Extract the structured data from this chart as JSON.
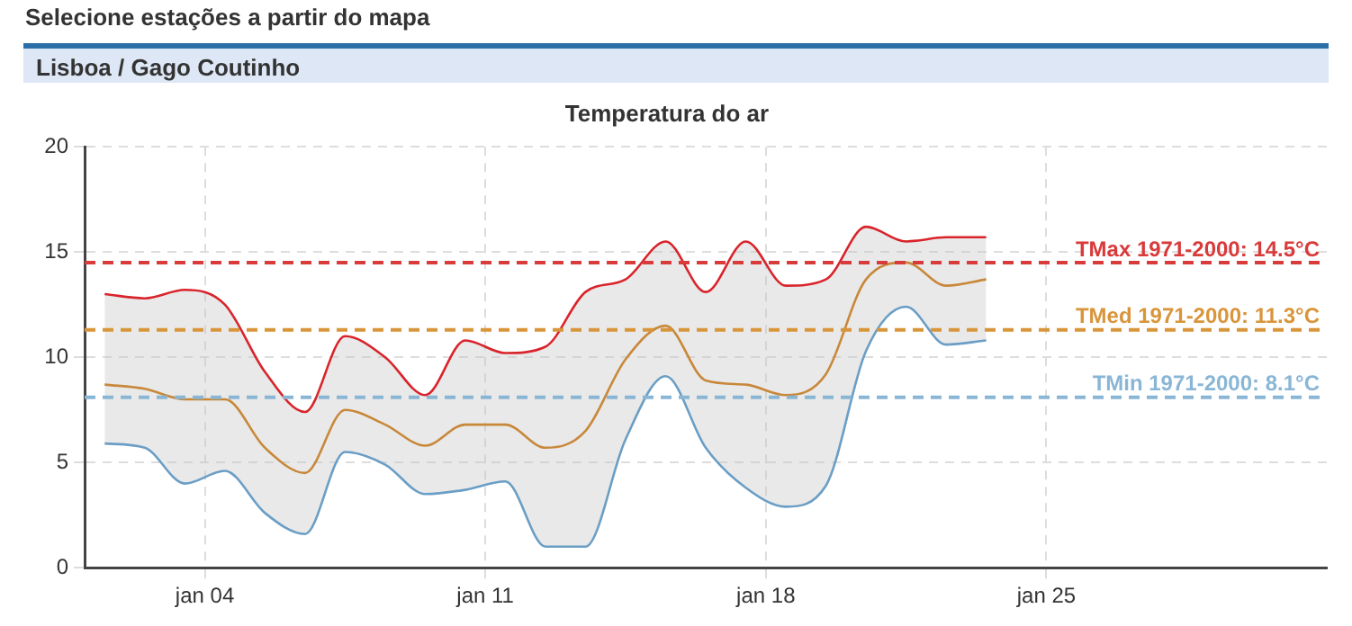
{
  "chart_data": {
    "type": "line",
    "title": "Temperatura do ar",
    "annotations": [
      "Selecione estações a partir do mapa",
      "Lisboa / Gago Coutinho"
    ],
    "x": [
      "--01-01T12:00",
      "--01-02T12:00",
      "--01-03T12:00",
      "--01-04T12:00",
      "--01-05T12:00",
      "--01-06T12:00",
      "--01-07T12:00",
      "--01-08T12:00",
      "--01-09T12:00",
      "--01-10T12:00",
      "--01-11T12:00",
      "--01-12T12:00",
      "--01-13T12:00",
      "--01-14T12:00",
      "--01-15T12:00",
      "--01-16T12:00",
      "--01-17T12:00",
      "--01-18T12:00",
      "--01-19T12:00",
      "--01-20T12:00",
      "--01-21T12:00",
      "--01-22T12:00",
      "--01-23T12:00"
    ],
    "series": [
      {
        "color": "#d9242b",
        "values": [
          13.0,
          12.8,
          13.2,
          12.5,
          9.3,
          7.4,
          11.0,
          10.0,
          8.2,
          10.8,
          10.2,
          10.5,
          13.1,
          13.7,
          15.5,
          13.1,
          15.5,
          13.4,
          13.7,
          16.2,
          15.5,
          15.7,
          15.7
        ]
      },
      {
        "color": "#c8883a",
        "values": [
          8.7,
          8.5,
          8.0,
          8.0,
          5.7,
          4.5,
          7.5,
          6.8,
          5.8,
          6.8,
          6.8,
          5.7,
          6.5,
          9.9,
          11.5,
          8.9,
          8.7,
          8.2,
          9.2,
          13.7,
          14.5,
          13.4,
          13.7
        ],
        "lower": [
          5.9,
          5.7,
          4.0,
          4.6,
          2.6,
          1.6,
          5.5,
          4.9,
          3.5,
          3.7,
          4.1,
          1.0,
          1.0,
          6.1,
          9.1,
          5.7,
          3.8,
          2.9,
          3.9,
          10.3,
          12.4,
          10.6,
          10.8
        ],
        "upper": [
          13.0,
          12.8,
          13.2,
          12.5,
          9.3,
          7.4,
          11.0,
          10.0,
          8.2,
          10.8,
          10.2,
          10.5,
          13.1,
          13.7,
          15.5,
          13.1,
          15.5,
          13.4,
          13.7,
          16.2,
          15.5,
          15.7,
          15.7
        ]
      },
      {
        "color": "#6a9ec5",
        "values": [
          5.9,
          5.7,
          4.0,
          4.6,
          2.6,
          1.6,
          5.5,
          4.9,
          3.5,
          3.7,
          4.1,
          1.0,
          1.0,
          6.1,
          9.1,
          5.7,
          3.8,
          2.9,
          3.9,
          10.3,
          12.4,
          10.6,
          10.8
        ]
      }
    ],
    "xlim": [
      "--01-01",
      "--02-01"
    ],
    "xticks": [
      {
        "value": "--01-04",
        "label": "jan 04"
      },
      {
        "value": "--01-11",
        "label": "jan 11"
      },
      {
        "value": "--01-18",
        "label": "jan 18"
      },
      {
        "value": "--01-25",
        "label": "jan 25"
      }
    ],
    "ylim": [
      0,
      20
    ],
    "yticks": [
      0,
      5,
      10,
      15,
      20
    ],
    "ref_lines": [
      {
        "axis": "y",
        "value": 14.5,
        "label": "TMax 1971-2000: 14.5°C",
        "color": "#d93a3a",
        "line_style": "dashed"
      },
      {
        "axis": "y",
        "value": 11.3,
        "label": "TMed 1971-2000: 11.3°C",
        "color": "#d9953a",
        "line_style": "dashed"
      },
      {
        "axis": "y",
        "value": 8.1,
        "label": "TMin 1971-2000: 8.1°C",
        "color": "#8ab6d6",
        "line_style": "dashed"
      }
    ],
    "grid": true,
    "legend": false,
    "marker": "none",
    "line_style": "solid"
  }
}
